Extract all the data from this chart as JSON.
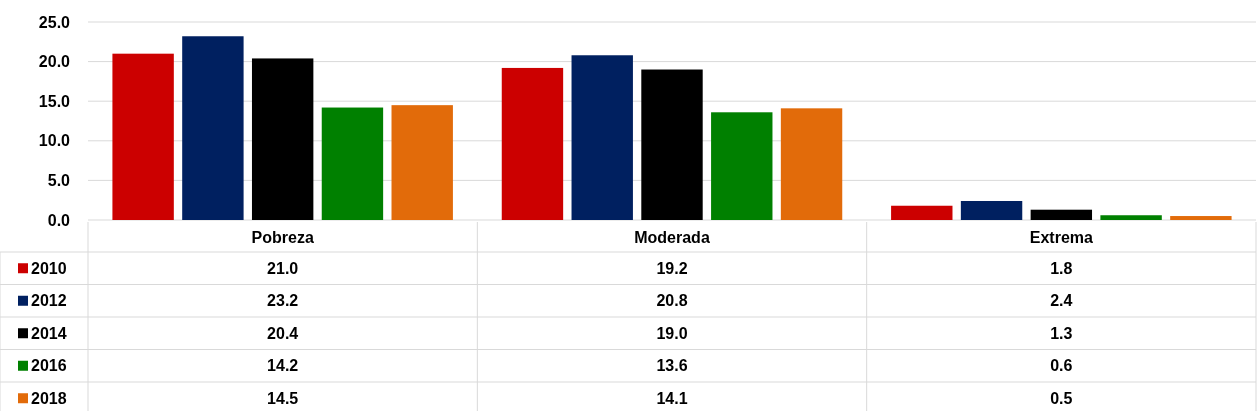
{
  "chart_data": {
    "type": "bar",
    "categories": [
      "Pobreza",
      "Moderada",
      "Extrema"
    ],
    "series": [
      {
        "name": "2010",
        "color": "#cc0000",
        "values": [
          21.0,
          19.2,
          1.8
        ],
        "value_labels": [
          "21.0",
          "19.2",
          "1.8"
        ]
      },
      {
        "name": "2012",
        "color": "#002060",
        "values": [
          23.2,
          20.8,
          2.4
        ],
        "value_labels": [
          "23.2",
          "20.8",
          "2.4"
        ]
      },
      {
        "name": "2014",
        "color": "#000000",
        "values": [
          20.4,
          19.0,
          1.3
        ],
        "value_labels": [
          "20.4",
          "19.0",
          "1.3"
        ]
      },
      {
        "name": "2016",
        "color": "#008000",
        "values": [
          14.2,
          13.6,
          0.6
        ],
        "value_labels": [
          "14.2",
          "13.6",
          "0.6"
        ]
      },
      {
        "name": "2018",
        "color": "#e26b0a",
        "values": [
          14.5,
          14.1,
          0.5
        ],
        "value_labels": [
          "14.5",
          "14.1",
          "0.5"
        ]
      }
    ],
    "ylim": [
      0,
      25
    ],
    "yticks": [
      {
        "value": 0,
        "label": "0.0"
      },
      {
        "value": 5,
        "label": "5.0"
      },
      {
        "value": 10,
        "label": "10.0"
      },
      {
        "value": 15,
        "label": "15.0"
      },
      {
        "value": 20,
        "label": "20.0"
      },
      {
        "value": 25,
        "label": "25.0"
      }
    ],
    "grid": "y",
    "legend": "bottom"
  }
}
